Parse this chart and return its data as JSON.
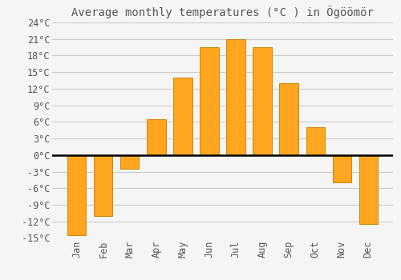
{
  "title": "Average monthly temperatures (°C ) in Ögöömör",
  "months": [
    "Jan",
    "Feb",
    "Mar",
    "Apr",
    "May",
    "Jun",
    "Jul",
    "Aug",
    "Sep",
    "Oct",
    "Nov",
    "Dec"
  ],
  "values": [
    -14.5,
    -11.0,
    -2.5,
    6.5,
    14.0,
    19.5,
    21.0,
    19.5,
    13.0,
    5.0,
    -5.0,
    -12.5
  ],
  "bar_color": "#FFA520",
  "bar_edge_color": "#CC8800",
  "background_color": "#F5F5F5",
  "grid_color": "#CCCCCC",
  "ylim": [
    -15,
    24
  ],
  "yticks": [
    -15,
    -12,
    -9,
    -6,
    -3,
    0,
    3,
    6,
    9,
    12,
    15,
    18,
    21,
    24
  ],
  "ytick_labels": [
    "-15°C",
    "-12°C",
    "-9°C",
    "-6°C",
    "-3°C",
    "0°C",
    "3°C",
    "6°C",
    "9°C",
    "12°C",
    "15°C",
    "18°C",
    "21°C",
    "24°C"
  ],
  "title_fontsize": 10,
  "tick_fontsize": 8.5
}
